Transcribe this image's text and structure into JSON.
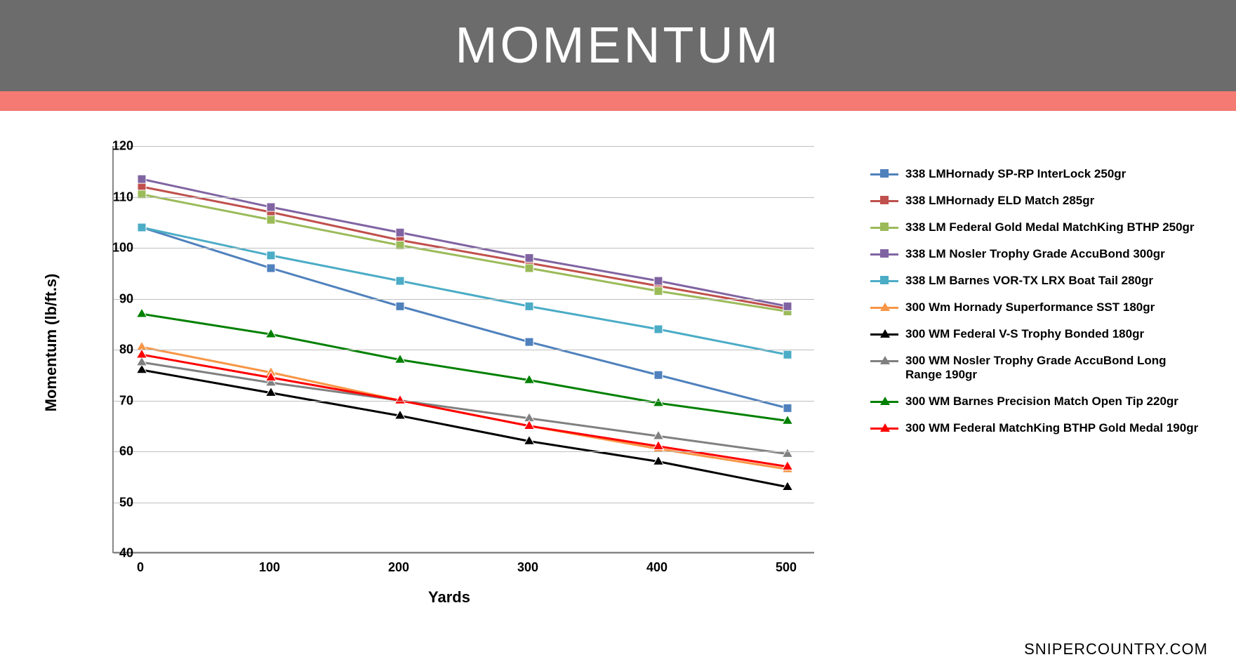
{
  "title": "MOMENTUM",
  "header_bg": "#6c6c6c",
  "red_bar_color": "#f47a73",
  "chart": {
    "type": "line",
    "ylabel": "Momentum (lb/ft.s)",
    "xlabel": "Yards",
    "ylabel_fontsize": 22,
    "xlabel_fontsize": 22,
    "tick_fontsize": 18,
    "ylim": [
      40,
      120
    ],
    "ytick_step": 10,
    "xticks": [
      0,
      100,
      200,
      300,
      400,
      500
    ],
    "grid_color": "#bfbfbf",
    "axis_color": "#888888",
    "background_color": "#ffffff",
    "line_width": 3,
    "marker_size": 12,
    "series": [
      {
        "label": "338 LMHornady SP-RP InterLock 250gr",
        "color": "#4f81bd",
        "marker": "square",
        "values": [
          104,
          96,
          88.5,
          81.5,
          75,
          68.5
        ]
      },
      {
        "label": "338 LMHornady ELD Match 285gr",
        "color": "#c0504d",
        "marker": "square",
        "values": [
          112,
          107,
          101.5,
          97,
          92.5,
          88
        ]
      },
      {
        "label": "338 LM Federal Gold Medal MatchKing BTHP 250gr",
        "color": "#9bbb59",
        "marker": "square",
        "values": [
          110.5,
          105.5,
          100.5,
          96,
          91.5,
          87.5
        ]
      },
      {
        "label": "338 LM Nosler Trophy Grade AccuBond 300gr",
        "color": "#8064a2",
        "marker": "square",
        "values": [
          113.5,
          108,
          103,
          98,
          93.5,
          88.5
        ]
      },
      {
        "label": "338 LM Barnes VOR-TX LRX Boat Tail 280gr",
        "color": "#4bacc6",
        "marker": "square",
        "values": [
          104,
          98.5,
          93.5,
          88.5,
          84,
          79
        ]
      },
      {
        "label": "300 Wm Hornady Superformance SST 180gr",
        "color": "#f79646",
        "marker": "triangle",
        "values": [
          80.5,
          75.5,
          70,
          65,
          60.5,
          56.5
        ]
      },
      {
        "label": "300 WM Federal V-S Trophy Bonded 180gr",
        "color": "#000000",
        "marker": "triangle",
        "values": [
          76,
          71.5,
          67,
          62,
          58,
          53
        ]
      },
      {
        "label": "300 WM Nosler Trophy Grade AccuBond Long Range 190gr",
        "color": "#808080",
        "marker": "triangle",
        "values": [
          77.5,
          73.5,
          70,
          66.5,
          63,
          59.5
        ]
      },
      {
        "label": "300 WM Barnes Precision Match Open Tip 220gr",
        "color": "#008000",
        "marker": "triangle",
        "values": [
          87,
          83,
          78,
          74,
          69.5,
          66
        ]
      },
      {
        "label": "300 WM Federal MatchKing BTHP Gold Medal 190gr",
        "color": "#ff0000",
        "marker": "triangle",
        "values": [
          79,
          74.5,
          70,
          65,
          61,
          57
        ]
      }
    ]
  },
  "watermark": "SNIPERCOUNTRY.COM"
}
